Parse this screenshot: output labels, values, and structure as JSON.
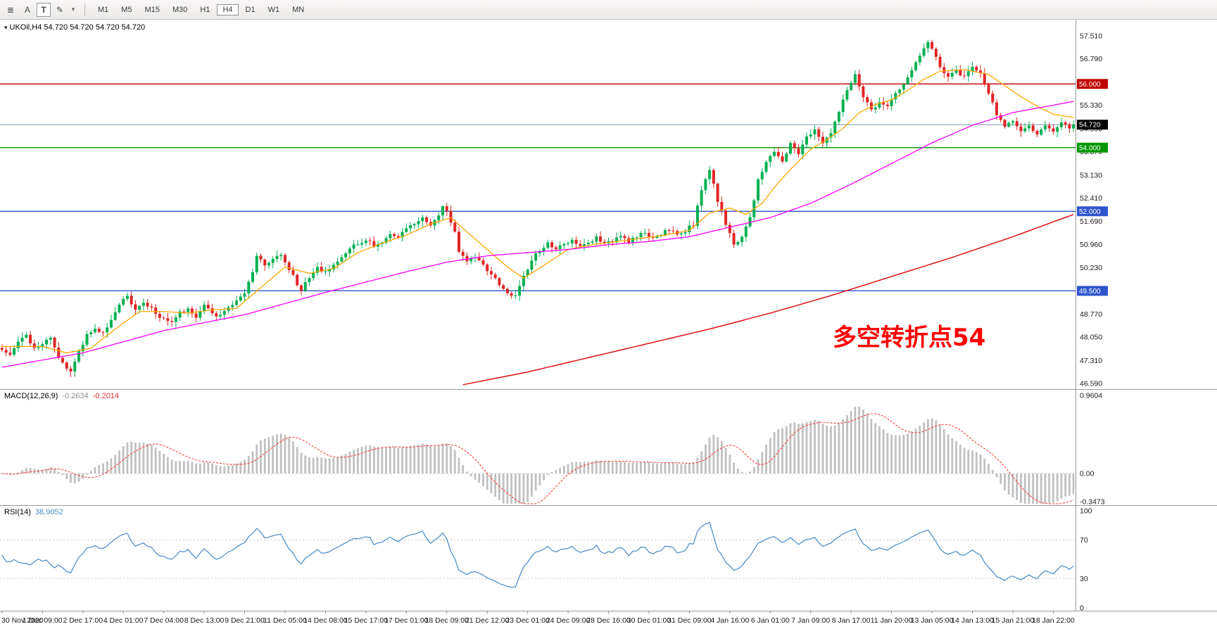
{
  "toolbar": {
    "tools": [
      {
        "name": "chart-list-icon",
        "glyph": "≣",
        "boxed": false
      },
      {
        "name": "font-tool-icon",
        "glyph": "A",
        "boxed": false
      },
      {
        "name": "text-label-tool-icon",
        "glyph": "T",
        "boxed": true
      },
      {
        "name": "draw-color-tool-icon",
        "glyph": "✎",
        "boxed": false
      },
      {
        "name": "dropdown-arrow-icon",
        "glyph": "▾",
        "boxed": false,
        "dd": true
      }
    ],
    "timeframes": [
      {
        "label": "M1",
        "active": false
      },
      {
        "label": "M5",
        "active": false
      },
      {
        "label": "M15",
        "active": false
      },
      {
        "label": "M30",
        "active": false
      },
      {
        "label": "H1",
        "active": false
      },
      {
        "label": "H4",
        "active": true
      },
      {
        "label": "D1",
        "active": false
      },
      {
        "label": "W1",
        "active": false
      },
      {
        "label": "MN",
        "active": false
      }
    ]
  },
  "chart": {
    "title_marker": "▾",
    "title": "UKOil,H4 54.720 54.720 54.720 54.720",
    "annotation": {
      "text": "多空转折点54",
      "color": "#ff0000"
    },
    "y_axis_labels": [
      "57.510",
      "56.790",
      "56.060",
      "55.330",
      "54.590",
      "53.870",
      "53.130",
      "52.410",
      "51.690",
      "50.960",
      "50.230",
      "49.500",
      "48.770",
      "48.050",
      "47.310",
      "46.590"
    ],
    "levels": [
      {
        "label": "56.000",
        "value": 56.0,
        "color": "#c00000"
      },
      {
        "label": "54.000",
        "value": 54.0,
        "color": "#009600"
      },
      {
        "label": "52.000",
        "value": 52.0,
        "color": "#2f55cd"
      },
      {
        "label": "49.500",
        "value": 49.5,
        "color": "#2f55cd"
      }
    ],
    "current_price": {
      "label": "54.720",
      "value": 54.72,
      "line_color": "#7d9ab5",
      "badge_color": "#000000"
    },
    "colors": {
      "bull": "#00b050",
      "bear": "#e02525",
      "ma_fast": "#ffa500",
      "ma_mid": "#ff00ff",
      "ma_slow": "#dd1111"
    }
  },
  "indicators": {
    "macd": {
      "name": "MACD(12,26,9)",
      "value_main": "-0.2634",
      "value_signal": "-0.2014",
      "fast": 12,
      "slow": 26,
      "signal": 9,
      "hist_color": "#c0c0c0",
      "signal_color": "#ff2a2a",
      "axis_labels": [
        {
          "text": "0.9604",
          "value": 0.9604
        },
        {
          "text": "0.00",
          "value": 0
        },
        {
          "text": "-0.3473",
          "value": -0.3473
        }
      ]
    },
    "rsi": {
      "name": "RSI(14)",
      "value": "38.9052",
      "period": 14,
      "line_color": "#4788c7",
      "levels": [
        70,
        30
      ],
      "axis_labels": [
        {
          "text": "100",
          "value": 100
        },
        {
          "text": "70",
          "value": 70
        },
        {
          "text": "30",
          "value": 30
        },
        {
          "text": "0",
          "value": 0
        }
      ]
    }
  },
  "chart_data": {
    "type": "candlestick",
    "symbol": "UKOil",
    "timeframe": "H4",
    "bars": 266,
    "ylim": [
      46.59,
      57.51
    ],
    "noise_seed": 20210118,
    "close_anchors": [
      [
        0,
        47.7
      ],
      [
        2,
        47.45
      ],
      [
        4,
        47.9
      ],
      [
        6,
        48.1
      ],
      [
        8,
        47.65
      ],
      [
        10,
        47.85
      ],
      [
        12,
        48.0
      ],
      [
        14,
        47.4
      ],
      [
        16,
        47.05
      ],
      [
        17,
        46.98
      ],
      [
        19,
        47.55
      ],
      [
        21,
        48.1
      ],
      [
        23,
        48.35
      ],
      [
        25,
        48.15
      ],
      [
        27,
        48.6
      ],
      [
        29,
        49.05
      ],
      [
        31,
        49.35
      ],
      [
        33,
        48.9
      ],
      [
        35,
        49.1
      ],
      [
        37,
        48.95
      ],
      [
        39,
        48.7
      ],
      [
        42,
        48.55
      ],
      [
        44,
        48.8
      ],
      [
        46,
        48.95
      ],
      [
        48,
        48.7
      ],
      [
        50,
        49.05
      ],
      [
        52,
        48.8
      ],
      [
        54,
        48.7
      ],
      [
        56,
        49.0
      ],
      [
        58,
        49.2
      ],
      [
        60,
        49.4
      ],
      [
        62,
        50.1
      ],
      [
        63,
        50.55
      ],
      [
        65,
        50.35
      ],
      [
        67,
        50.5
      ],
      [
        69,
        50.65
      ],
      [
        71,
        50.2
      ],
      [
        73,
        49.7
      ],
      [
        74,
        49.5
      ],
      [
        76,
        49.95
      ],
      [
        78,
        50.2
      ],
      [
        80,
        50.1
      ],
      [
        82,
        50.35
      ],
      [
        84,
        50.6
      ],
      [
        86,
        50.85
      ],
      [
        88,
        51.0
      ],
      [
        90,
        51.1
      ],
      [
        92,
        50.9
      ],
      [
        94,
        51.05
      ],
      [
        96,
        51.3
      ],
      [
        98,
        51.2
      ],
      [
        100,
        51.45
      ],
      [
        102,
        51.6
      ],
      [
        104,
        51.75
      ],
      [
        106,
        51.55
      ],
      [
        108,
        51.9
      ],
      [
        109,
        52.15
      ],
      [
        110,
        52.05
      ],
      [
        112,
        51.3
      ],
      [
        113,
        50.75
      ],
      [
        115,
        50.45
      ],
      [
        117,
        50.6
      ],
      [
        119,
        50.3
      ],
      [
        121,
        50.0
      ],
      [
        123,
        49.7
      ],
      [
        125,
        49.45
      ],
      [
        127,
        49.3
      ],
      [
        129,
        49.95
      ],
      [
        131,
        50.45
      ],
      [
        133,
        50.8
      ],
      [
        135,
        51.0
      ],
      [
        137,
        50.8
      ],
      [
        139,
        50.95
      ],
      [
        141,
        51.05
      ],
      [
        143,
        50.85
      ],
      [
        145,
        51.0
      ],
      [
        147,
        51.15
      ],
      [
        149,
        50.95
      ],
      [
        151,
        51.05
      ],
      [
        153,
        51.25
      ],
      [
        155,
        51.05
      ],
      [
        157,
        51.2
      ],
      [
        159,
        51.35
      ],
      [
        161,
        51.15
      ],
      [
        163,
        51.3
      ],
      [
        165,
        51.45
      ],
      [
        167,
        51.3
      ],
      [
        169,
        51.4
      ],
      [
        171,
        51.6
      ],
      [
        173,
        52.7
      ],
      [
        175,
        53.25
      ],
      [
        176,
        52.9
      ],
      [
        177,
        52.35
      ],
      [
        179,
        51.6
      ],
      [
        181,
        50.95
      ],
      [
        183,
        51.2
      ],
      [
        185,
        51.85
      ],
      [
        187,
        52.95
      ],
      [
        189,
        53.6
      ],
      [
        191,
        53.85
      ],
      [
        193,
        53.55
      ],
      [
        195,
        54.1
      ],
      [
        197,
        53.85
      ],
      [
        199,
        54.3
      ],
      [
        201,
        54.6
      ],
      [
        203,
        54.1
      ],
      [
        205,
        54.45
      ],
      [
        207,
        55.15
      ],
      [
        209,
        55.8
      ],
      [
        211,
        56.25
      ],
      [
        213,
        55.6
      ],
      [
        215,
        55.15
      ],
      [
        217,
        55.45
      ],
      [
        219,
        55.3
      ],
      [
        221,
        55.7
      ],
      [
        223,
        56.05
      ],
      [
        225,
        56.4
      ],
      [
        227,
        56.85
      ],
      [
        229,
        57.3
      ],
      [
        230,
        57.1
      ],
      [
        232,
        56.5
      ],
      [
        234,
        56.2
      ],
      [
        236,
        56.4
      ],
      [
        238,
        56.25
      ],
      [
        240,
        56.5
      ],
      [
        242,
        56.3
      ],
      [
        244,
        55.7
      ],
      [
        246,
        55.05
      ],
      [
        248,
        54.65
      ],
      [
        250,
        54.85
      ],
      [
        252,
        54.5
      ],
      [
        254,
        54.7
      ],
      [
        256,
        54.4
      ],
      [
        258,
        54.7
      ],
      [
        260,
        54.55
      ],
      [
        262,
        54.8
      ],
      [
        264,
        54.6
      ],
      [
        265,
        54.72
      ]
    ],
    "ma_fast_anchors": [
      [
        0,
        47.75
      ],
      [
        10,
        47.75
      ],
      [
        16,
        47.55
      ],
      [
        22,
        47.7
      ],
      [
        28,
        48.3
      ],
      [
        34,
        48.85
      ],
      [
        40,
        48.85
      ],
      [
        46,
        48.8
      ],
      [
        52,
        48.9
      ],
      [
        58,
        48.95
      ],
      [
        64,
        49.6
      ],
      [
        70,
        50.25
      ],
      [
        76,
        50.05
      ],
      [
        82,
        50.2
      ],
      [
        88,
        50.7
      ],
      [
        94,
        51.0
      ],
      [
        100,
        51.25
      ],
      [
        106,
        51.6
      ],
      [
        111,
        51.8
      ],
      [
        115,
        51.35
      ],
      [
        120,
        50.8
      ],
      [
        125,
        50.25
      ],
      [
        129,
        49.9
      ],
      [
        134,
        50.3
      ],
      [
        140,
        50.8
      ],
      [
        146,
        50.95
      ],
      [
        152,
        51.05
      ],
      [
        158,
        51.15
      ],
      [
        164,
        51.25
      ],
      [
        170,
        51.4
      ],
      [
        175,
        51.95
      ],
      [
        180,
        52.1
      ],
      [
        184,
        51.9
      ],
      [
        188,
        52.25
      ],
      [
        192,
        52.9
      ],
      [
        196,
        53.45
      ],
      [
        200,
        53.95
      ],
      [
        204,
        54.25
      ],
      [
        208,
        54.6
      ],
      [
        212,
        55.1
      ],
      [
        216,
        55.35
      ],
      [
        220,
        55.5
      ],
      [
        224,
        55.8
      ],
      [
        228,
        56.15
      ],
      [
        232,
        56.4
      ],
      [
        238,
        56.45
      ],
      [
        244,
        56.3
      ],
      [
        248,
        55.95
      ],
      [
        252,
        55.6
      ],
      [
        256,
        55.3
      ],
      [
        260,
        55.05
      ],
      [
        265,
        54.95
      ]
    ],
    "ma_mid_anchors": [
      [
        0,
        47.1
      ],
      [
        20,
        47.55
      ],
      [
        40,
        48.25
      ],
      [
        60,
        48.75
      ],
      [
        80,
        49.45
      ],
      [
        100,
        50.1
      ],
      [
        110,
        50.4
      ],
      [
        120,
        50.6
      ],
      [
        130,
        50.7
      ],
      [
        140,
        50.8
      ],
      [
        150,
        50.95
      ],
      [
        160,
        51.05
      ],
      [
        170,
        51.2
      ],
      [
        180,
        51.5
      ],
      [
        190,
        51.8
      ],
      [
        200,
        52.25
      ],
      [
        210,
        52.85
      ],
      [
        220,
        53.5
      ],
      [
        230,
        54.15
      ],
      [
        240,
        54.7
      ],
      [
        250,
        55.1
      ],
      [
        265,
        55.45
      ]
    ],
    "ma_slow_anchors": [
      [
        114,
        46.55
      ],
      [
        130,
        46.95
      ],
      [
        145,
        47.4
      ],
      [
        160,
        47.85
      ],
      [
        175,
        48.3
      ],
      [
        190,
        48.8
      ],
      [
        205,
        49.35
      ],
      [
        220,
        49.95
      ],
      [
        235,
        50.55
      ],
      [
        250,
        51.2
      ],
      [
        265,
        51.9
      ]
    ],
    "x_labels": [
      {
        "bar": 0,
        "text": "30 Nov 2020"
      },
      {
        "bar": 10,
        "text": "1 Dec 09:00"
      },
      {
        "bar": 20,
        "text": "2 Dec 17:00"
      },
      {
        "bar": 30,
        "text": "4 Dec 01:00"
      },
      {
        "bar": 40,
        "text": "7 Dec 04:00"
      },
      {
        "bar": 50,
        "text": "8 Dec 13:00"
      },
      {
        "bar": 60,
        "text": "9 Dec 21:00"
      },
      {
        "bar": 70,
        "text": "11 Dec 05:00"
      },
      {
        "bar": 80,
        "text": "14 Dec 08:00"
      },
      {
        "bar": 90,
        "text": "15 Dec 17:00"
      },
      {
        "bar": 100,
        "text": "17 Dec 01:00"
      },
      {
        "bar": 110,
        "text": "18 Dec 09:00"
      },
      {
        "bar": 120,
        "text": "21 Dec 12:00"
      },
      {
        "bar": 130,
        "text": "23 Dec 01:00"
      },
      {
        "bar": 140,
        "text": "24 Dec 09:00"
      },
      {
        "bar": 150,
        "text": "28 Dec 16:00"
      },
      {
        "bar": 160,
        "text": "30 Dec 01:00"
      },
      {
        "bar": 170,
        "text": "31 Dec 09:00"
      },
      {
        "bar": 180,
        "text": "4 Jan 16:00"
      },
      {
        "bar": 190,
        "text": "6 Jan 01:00"
      },
      {
        "bar": 200,
        "text": "7 Jan 09:00"
      },
      {
        "bar": 210,
        "text": "8 Jan 17:00"
      },
      {
        "bar": 220,
        "text": "11 Jan 20:00"
      },
      {
        "bar": 230,
        "text": "13 Jan 05:00"
      },
      {
        "bar": 240,
        "text": "14 Jan 13:00"
      },
      {
        "bar": 250,
        "text": "15 Jan 21:00"
      },
      {
        "bar": 260,
        "text": "18 Jan 22:00"
      }
    ]
  }
}
